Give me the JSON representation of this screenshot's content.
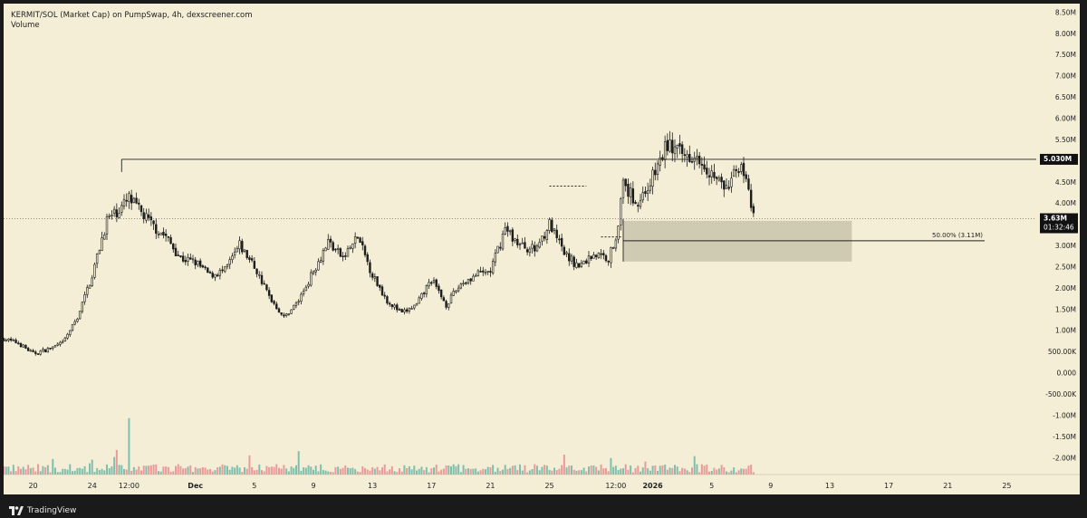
{
  "header": {
    "title": "KERMIT/SOL (Market Cap) on PumpSwap, 4h, dexscreener.com",
    "subtitle": "Volume"
  },
  "branding": {
    "name": "TradingView",
    "logo_icon": "tradingview-logo-icon"
  },
  "colors": {
    "background": "#f3eed5",
    "candle": "#1c1c1c",
    "volume_up": "#7fbfae",
    "volume_down": "#eb9a9a",
    "zone_fill": "#c8c3ac",
    "frame": "#1a1a1a"
  },
  "chart_data": {
    "type": "candlestick",
    "timeframe": "4h",
    "y_axis": {
      "ticks": [
        "8.50M",
        "8.00M",
        "7.50M",
        "7.00M",
        "6.50M",
        "6.00M",
        "5.50M",
        "5.00M",
        "4.50M",
        "4.00M",
        "3.50M",
        "3.00M",
        "2.50M",
        "2.00M",
        "1.50M",
        "1.00M",
        "500.00K",
        "0.000",
        "-500.00K",
        "-1.00M",
        "-1.50M",
        "-2.00M"
      ],
      "tick_values": [
        8.5,
        8.0,
        7.5,
        7.0,
        6.5,
        6.0,
        5.5,
        5.0,
        4.5,
        4.0,
        3.5,
        3.0,
        2.5,
        2.0,
        1.5,
        1.0,
        0.5,
        0.0,
        -0.5,
        -1.0,
        -1.5,
        -2.0
      ],
      "range": [
        -2.4,
        8.7
      ],
      "unit": "M"
    },
    "x_axis": {
      "labels": [
        "20",
        "24",
        "12:00",
        "Dec",
        "5",
        "9",
        "13",
        "17",
        "21",
        "25",
        "12:00",
        "2026",
        "5",
        "9",
        "13",
        "17",
        "21",
        "25"
      ],
      "label_dates": [
        "2025-11-20",
        "2025-11-24",
        "2025-11-26T12:00",
        "2025-12-01",
        "2025-12-05",
        "2025-12-09",
        "2025-12-13",
        "2025-12-17",
        "2025-12-21",
        "2025-12-25",
        "2025-12-29T12:00",
        "2026-01-01",
        "2026-01-05",
        "2026-01-09",
        "2026-01-13",
        "2026-01-17",
        "2026-01-21",
        "2026-01-25"
      ],
      "bold": [
        "Dec",
        "2026"
      ],
      "range": [
        "2025-11-18T00:00",
        "2026-01-27T00:00"
      ]
    },
    "price_path": [
      [
        "2025-11-18T00:00",
        0.8
      ],
      [
        "2025-11-19T00:00",
        0.7
      ],
      [
        "2025-11-20T00:00",
        0.45
      ],
      [
        "2025-11-21T00:00",
        0.55
      ],
      [
        "2025-11-22T00:00",
        0.7
      ],
      [
        "2025-11-23T00:00",
        1.3
      ],
      [
        "2025-11-24T00:00",
        2.3
      ],
      [
        "2025-11-25T00:00",
        3.6
      ],
      [
        "2025-11-26T00:00",
        3.9
      ],
      [
        "2025-11-26T12:00",
        4.1
      ],
      [
        "2025-11-27T00:00",
        3.9
      ],
      [
        "2025-11-28T00:00",
        3.5
      ],
      [
        "2025-11-29T00:00",
        3.2
      ],
      [
        "2025-11-30T00:00",
        2.7
      ],
      [
        "2025-12-01T00:00",
        2.6
      ],
      [
        "2025-12-02T00:00",
        2.3
      ],
      [
        "2025-12-03T00:00",
        2.4
      ],
      [
        "2025-12-04T00:00",
        3.0
      ],
      [
        "2025-12-05T00:00",
        2.5
      ],
      [
        "2025-12-06T00:00",
        1.8
      ],
      [
        "2025-12-07T00:00",
        1.3
      ],
      [
        "2025-12-08T00:00",
        1.7
      ],
      [
        "2025-12-09T00:00",
        2.4
      ],
      [
        "2025-12-10T00:00",
        3.1
      ],
      [
        "2025-12-11T00:00",
        2.7
      ],
      [
        "2025-12-12T00:00",
        3.2
      ],
      [
        "2025-12-13T00:00",
        2.3
      ],
      [
        "2025-12-14T00:00",
        1.7
      ],
      [
        "2025-12-15T00:00",
        1.4
      ],
      [
        "2025-12-16T00:00",
        1.6
      ],
      [
        "2025-12-17T00:00",
        2.2
      ],
      [
        "2025-12-18T00:00",
        1.6
      ],
      [
        "2025-12-19T00:00",
        2.1
      ],
      [
        "2025-12-20T00:00",
        2.3
      ],
      [
        "2025-12-21T00:00",
        2.4
      ],
      [
        "2025-12-22T00:00",
        3.4
      ],
      [
        "2025-12-23T00:00",
        3.0
      ],
      [
        "2025-12-24T00:00",
        2.9
      ],
      [
        "2025-12-25T00:00",
        3.5
      ],
      [
        "2025-12-26T00:00",
        2.8
      ],
      [
        "2025-12-27T00:00",
        2.5
      ],
      [
        "2025-12-28T00:00",
        2.8
      ],
      [
        "2025-12-29T00:00",
        2.7
      ],
      [
        "2025-12-29T12:00",
        3.2
      ],
      [
        "2025-12-30T00:00",
        4.4
      ],
      [
        "2025-12-31T00:00",
        4.0
      ],
      [
        "2026-01-01T00:00",
        4.6
      ],
      [
        "2026-01-02T00:00",
        5.4
      ],
      [
        "2026-01-03T00:00",
        5.1
      ],
      [
        "2026-01-04T00:00",
        5.2
      ],
      [
        "2026-01-05T00:00",
        4.7
      ],
      [
        "2026-01-06T00:00",
        4.3
      ],
      [
        "2026-01-07T00:00",
        5.0
      ],
      [
        "2026-01-07T20:00",
        3.63
      ]
    ],
    "volume_range": [
      0,
      4.0
    ],
    "annotations": {
      "resistance": {
        "value": 5.03,
        "label": "5.030M",
        "from": "2025-11-26T00:00"
      },
      "current": {
        "value": 3.63,
        "label": "3.63M",
        "countdown": "01:32:46"
      },
      "fib_line": {
        "value": 3.11,
        "label": "50.00% (3.11M)",
        "from": "2025-12-30T00:00",
        "to": "2026-01-23T12:00"
      },
      "zone": {
        "top": 3.58,
        "bottom": 2.62,
        "from": "2025-12-30T00:00",
        "to": "2026-01-14T12:00"
      },
      "dotted_segments": [
        {
          "value": 4.4,
          "from": "2025-12-25T00:00",
          "to": "2025-12-27T12:00"
        },
        {
          "value": 3.2,
          "from": "2025-12-28T12:00",
          "to": "2025-12-30T00:00"
        }
      ]
    }
  }
}
